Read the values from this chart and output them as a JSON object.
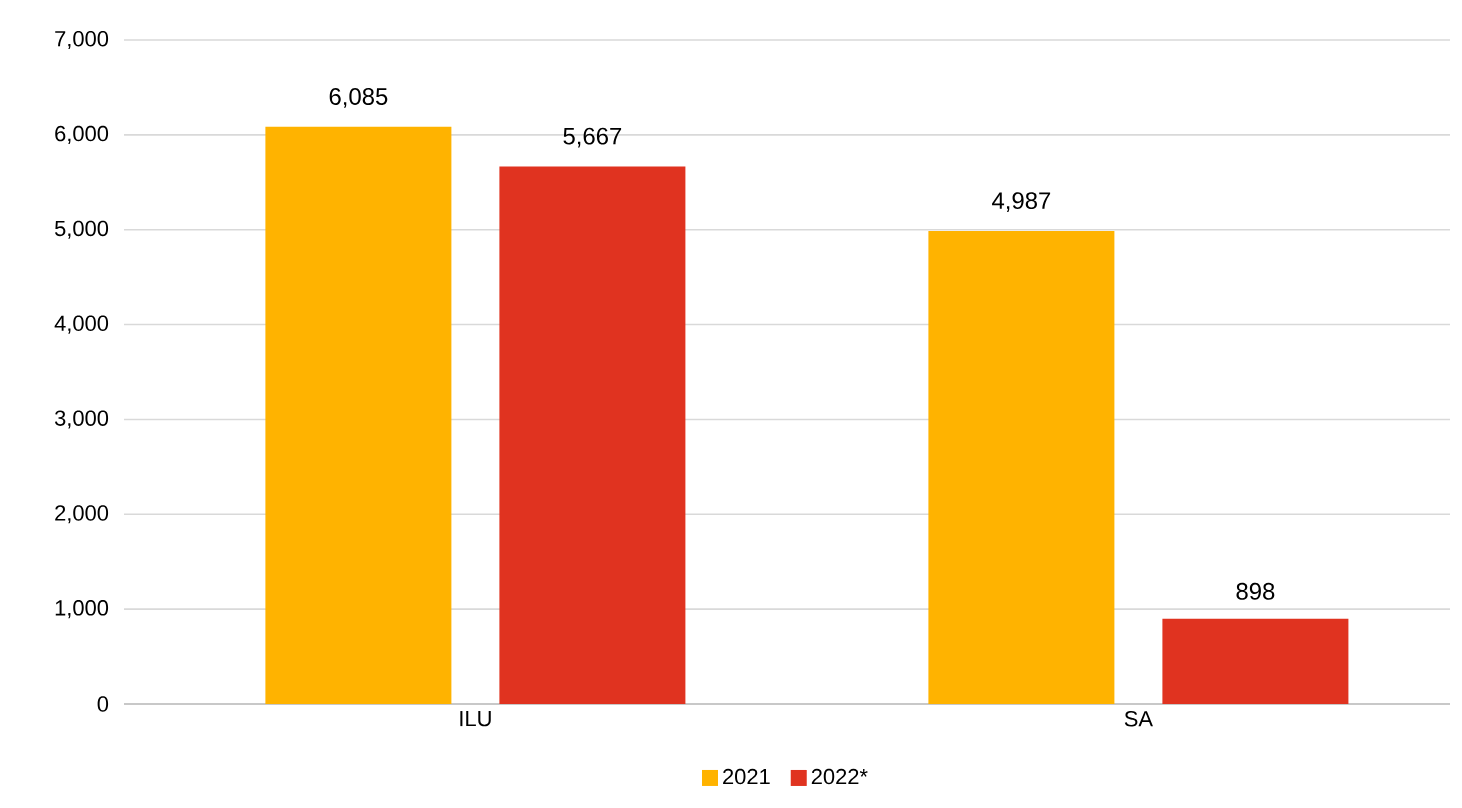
{
  "chart_data": {
    "type": "bar",
    "categories": [
      "ILU",
      "SA"
    ],
    "series": [
      {
        "name": "2021",
        "color": "#ffb300",
        "values": [
          6085,
          4987
        ],
        "value_labels": [
          "6,085",
          "4,987"
        ]
      },
      {
        "name": "2022*",
        "color": "#e03320",
        "values": [
          5667,
          898
        ],
        "value_labels": [
          "5,667",
          "898"
        ]
      }
    ],
    "ylim": [
      0,
      7000
    ],
    "yticks": [
      {
        "value": 0,
        "label": "0"
      },
      {
        "value": 1000,
        "label": "1,000"
      },
      {
        "value": 2000,
        "label": "2,000"
      },
      {
        "value": 3000,
        "label": "3,000"
      },
      {
        "value": 4000,
        "label": "4,000"
      },
      {
        "value": 5000,
        "label": "5,000"
      },
      {
        "value": 6000,
        "label": "6,000"
      },
      {
        "value": 7000,
        "label": "7,000"
      }
    ],
    "grid": "y",
    "legend": "bottom"
  }
}
